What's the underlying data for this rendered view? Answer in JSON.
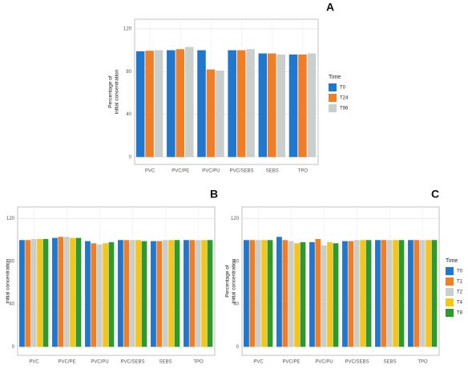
{
  "chart_data": [
    {
      "type": "bar",
      "panel_label": "A",
      "y_label": [
        "Percentage of",
        "initial concentration"
      ],
      "categories": [
        "PVC",
        "PVC/PE",
        "PVC/PU",
        "PVC/SEBS",
        "SEBS",
        "TPO"
      ],
      "series": [
        {
          "name": "T0",
          "color": "#1f77d0",
          "values": [
            99,
            100,
            100,
            100,
            97,
            96
          ]
        },
        {
          "name": "T24",
          "color": "#f07e26",
          "values": [
            99.5,
            101,
            82,
            100,
            97,
            96
          ]
        },
        {
          "name": "T96",
          "color": "#c8cfcc",
          "values": [
            100,
            103,
            81,
            101,
            96,
            97
          ]
        }
      ],
      "ylim": [
        -7,
        129
      ],
      "yticks": [
        0,
        40,
        80,
        120
      ],
      "grid": true,
      "legend": "right",
      "legend_title": "Time"
    },
    {
      "type": "bar",
      "panel_label": "B",
      "y_label": [
        "initial concentration"
      ],
      "categories": [
        "PVC",
        "PVC/PE",
        "PVC/PU",
        "PVC/SEBS",
        "SEBS",
        "TPO"
      ],
      "series": [
        {
          "color": "#1f77d0",
          "values": [
            100,
            102,
            99,
            100,
            99,
            100
          ]
        },
        {
          "color": "#f07e26",
          "values": [
            100,
            103,
            97,
            100,
            99,
            100
          ]
        },
        {
          "color": "#c8cfcc",
          "values": [
            101,
            103,
            96,
            100,
            100,
            100
          ]
        },
        {
          "color": "#f5c518",
          "values": [
            101,
            102,
            97,
            100,
            100,
            100
          ]
        },
        {
          "color": "#2e9a2e",
          "values": [
            101,
            102,
            98,
            99,
            100,
            100
          ]
        }
      ],
      "ylim": [
        -8,
        131
      ],
      "yticks": [
        0,
        40,
        80,
        120
      ],
      "grid": true,
      "legend": false
    },
    {
      "type": "bar",
      "panel_label": "C",
      "y_label": [
        "Percentage of",
        "initial concentration"
      ],
      "categories": [
        "PVC",
        "PVC/PE",
        "PVC/PU",
        "PVC/SEBS",
        "SEBS",
        "TPO"
      ],
      "series": [
        {
          "name": "T0",
          "color": "#1f77d0",
          "values": [
            100,
            103,
            98,
            99,
            100,
            100
          ]
        },
        {
          "name": "T1",
          "color": "#f07e26",
          "values": [
            100,
            100,
            101,
            99,
            100,
            100
          ]
        },
        {
          "name": "T2",
          "color": "#c8cfcc",
          "values": [
            100,
            99,
            95,
            100,
            100,
            100
          ]
        },
        {
          "name": "T4",
          "color": "#f5c518",
          "values": [
            100,
            97,
            98,
            100,
            100,
            100
          ]
        },
        {
          "name": "T8",
          "color": "#2e9a2e",
          "values": [
            100,
            98,
            97,
            100,
            100,
            100
          ]
        }
      ],
      "ylim": [
        -8,
        131
      ],
      "yticks": [
        0,
        40,
        80,
        120
      ],
      "grid": true,
      "legend": "right",
      "legend_title": "Time"
    }
  ]
}
